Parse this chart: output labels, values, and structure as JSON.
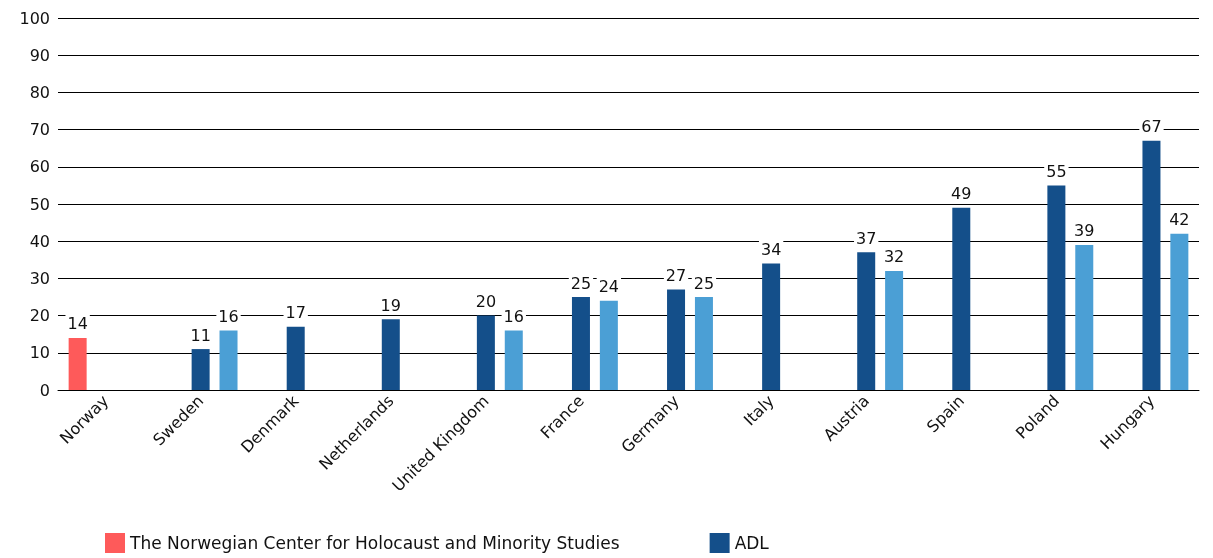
{
  "chart_data": {
    "type": "bar",
    "categories": [
      "Norway",
      "Sweden",
      "Denmark",
      "Netherlands",
      "United Kingdom",
      "France",
      "Germany",
      "Italy",
      "Austria",
      "Spain",
      "Poland",
      "Hungary"
    ],
    "series": [
      {
        "name": "The Norwegian Center for Holocaust and Minority Studies",
        "color": "#fe5a5a",
        "values": [
          14,
          null,
          null,
          null,
          null,
          null,
          null,
          null,
          null,
          null,
          null,
          null
        ]
      },
      {
        "name": "ADL",
        "color": "#144f8a",
        "values": [
          null,
          11,
          17,
          19,
          20,
          25,
          27,
          34,
          37,
          49,
          55,
          67
        ]
      },
      {
        "color": "#4b9fd5",
        "values": [
          null,
          16,
          null,
          null,
          16,
          24,
          25,
          null,
          32,
          null,
          39,
          42
        ]
      }
    ],
    "ylim": [
      0,
      100
    ],
    "yticks": [
      0,
      10,
      20,
      30,
      40,
      50,
      60,
      70,
      80,
      90,
      100
    ],
    "grid": "y",
    "legend": "bottom",
    "data_labels": true
  }
}
